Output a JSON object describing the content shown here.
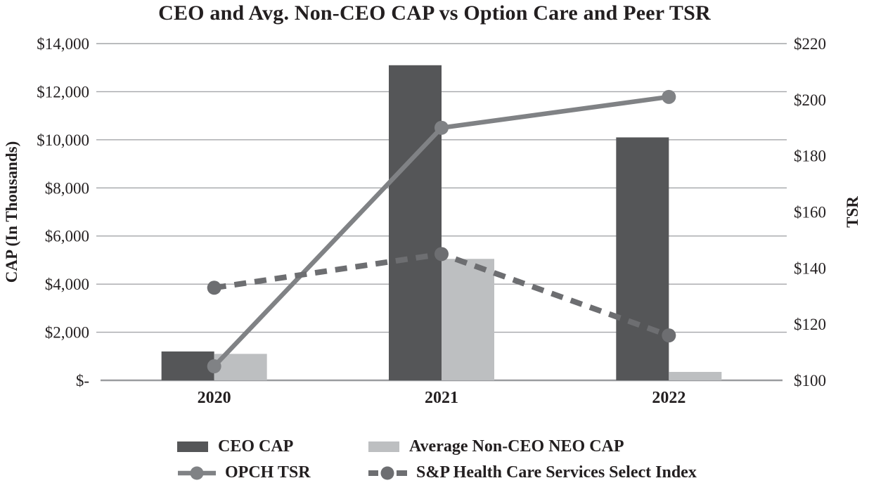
{
  "chart_data": {
    "type": "combo-bar-line",
    "title": "CEO and Avg. Non-CEO CAP vs Option Care and Peer TSR",
    "categories": [
      "2020",
      "2021",
      "2022"
    ],
    "bar_series": [
      {
        "name": "CEO CAP",
        "values": [
          1200,
          13100,
          10100
        ],
        "color": "#555658"
      },
      {
        "name": "Average Non-CEO NEO CAP",
        "values": [
          1100,
          5050,
          350
        ],
        "color": "#bdbfc1"
      }
    ],
    "line_series": [
      {
        "name": "OPCH TSR",
        "values": [
          105,
          190,
          201
        ],
        "color": "#808285",
        "style": "solid",
        "marker": "circle"
      },
      {
        "name": "S&P Health Care Services Select Index",
        "values": [
          133,
          145,
          116
        ],
        "color": "#6d6e71",
        "style": "dashed",
        "marker": "circle"
      }
    ],
    "left_axis": {
      "label": "CAP (In Thousands)",
      "min": 0,
      "max": 14000,
      "step": 2000,
      "ticks_top_to_bottom": [
        "$14,000",
        "$12,000",
        "$10,000",
        "$8,000",
        "$6,000",
        "$4,000",
        "$2,000",
        "$-"
      ]
    },
    "right_axis": {
      "label": "TSR",
      "min": 100,
      "max": 220,
      "step": 20,
      "ticks_top_to_bottom": [
        "$220",
        "$200",
        "$180",
        "$160",
        "$140",
        "$120",
        "$100"
      ]
    },
    "grid": true,
    "legend_position": "bottom"
  },
  "style": {
    "gridline_color": "#a4a6a9",
    "axis_line_color": "#9a9c9f",
    "text_color": "#231f20",
    "background_color": "#ffffff"
  }
}
